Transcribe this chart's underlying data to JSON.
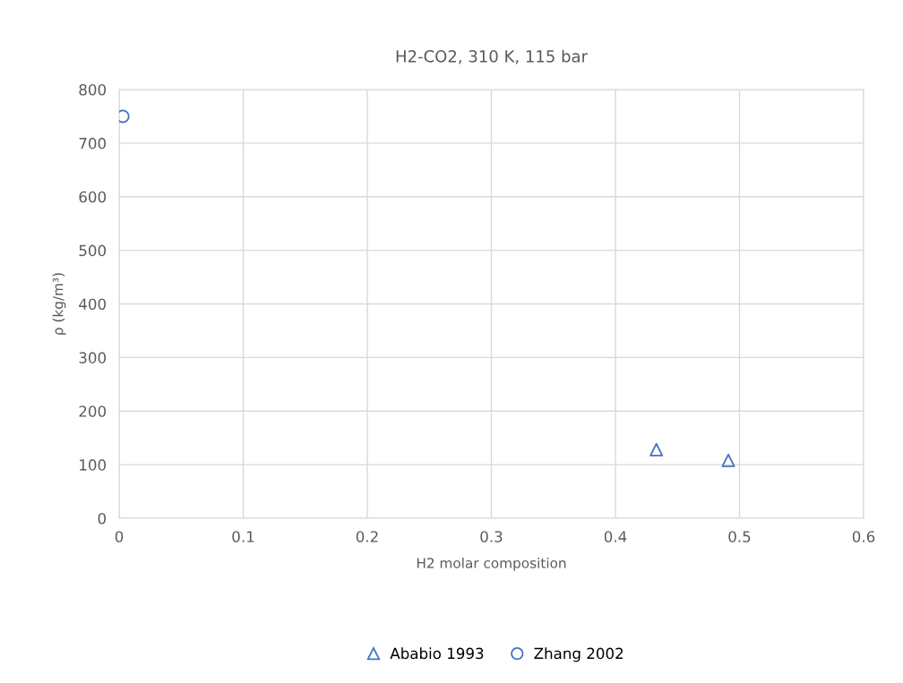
{
  "chart_data": {
    "type": "scatter",
    "title": "H2-CO2, 310 K, 115 bar",
    "xlabel": "H2 molar composition",
    "ylabel": "ρ (kg/m³)",
    "series": [
      {
        "name": "Ababio 1993",
        "color": "#4472c4",
        "marker": "triangle",
        "x": [
          0.433,
          0.491
        ],
        "values": [
          128,
          108
        ]
      },
      {
        "name": "Zhang 2002",
        "color": "#4472c4",
        "marker": "circle",
        "x": [
          0.003
        ],
        "values": [
          750
        ]
      }
    ],
    "xlim": [
      0,
      0.6
    ],
    "xticks": [
      {
        "value": 0,
        "label": "0"
      },
      0.1,
      0.2,
      0.3,
      0.4,
      0.5,
      0.6
    ],
    "ylim": [
      0,
      800
    ],
    "yticks": [
      0,
      100,
      200,
      300,
      400,
      500,
      600,
      700,
      800
    ],
    "grid": true,
    "legend": "bottom"
  }
}
